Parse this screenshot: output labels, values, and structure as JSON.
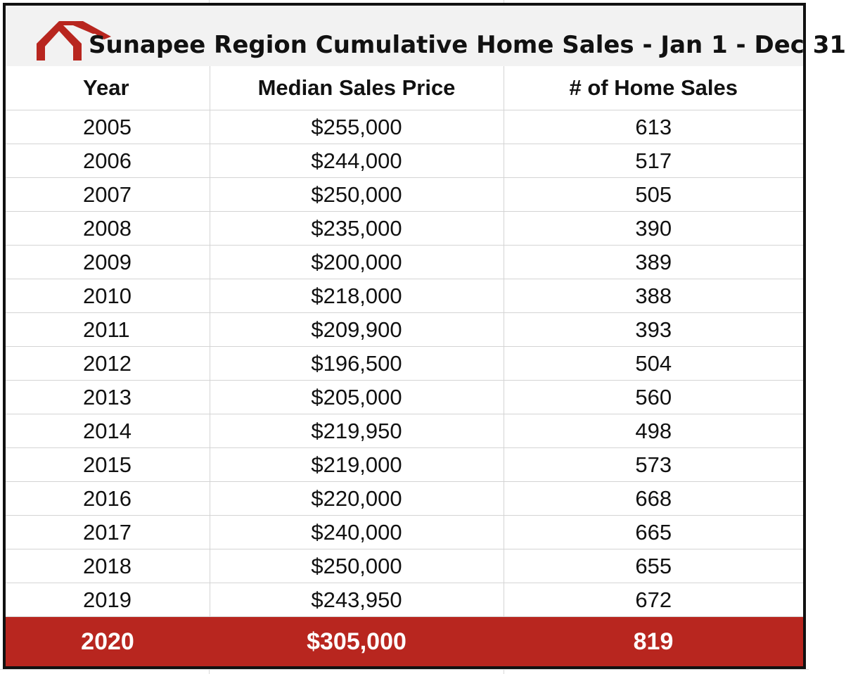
{
  "title": "Sunapee Region Cumulative Home Sales - Jan 1 - Dec 31",
  "colors": {
    "logo": "#b8261f",
    "highlight_row": "#b8261f",
    "frame": "#111111",
    "title_bg": "#f2f2f2"
  },
  "logo_icon": "house-roof-icon",
  "headers": {
    "year": "Year",
    "price": "Median Sales Price",
    "sales": "# of Home Sales"
  },
  "rows": [
    {
      "year": "2005",
      "price": "$255,000",
      "sales": "613"
    },
    {
      "year": "2006",
      "price": "$244,000",
      "sales": "517"
    },
    {
      "year": "2007",
      "price": "$250,000",
      "sales": "505"
    },
    {
      "year": "2008",
      "price": "$235,000",
      "sales": "390"
    },
    {
      "year": "2009",
      "price": "$200,000",
      "sales": "389"
    },
    {
      "year": "2010",
      "price": "$218,000",
      "sales": "388"
    },
    {
      "year": "2011",
      "price": "$209,900",
      "sales": "393"
    },
    {
      "year": "2012",
      "price": "$196,500",
      "sales": "504"
    },
    {
      "year": "2013",
      "price": "$205,000",
      "sales": "560"
    },
    {
      "year": "2014",
      "price": "$219,950",
      "sales": "498"
    },
    {
      "year": "2015",
      "price": "$219,000",
      "sales": "573"
    },
    {
      "year": "2016",
      "price": "$220,000",
      "sales": "668"
    },
    {
      "year": "2017",
      "price": "$240,000",
      "sales": "665"
    },
    {
      "year": "2018",
      "price": "$250,000",
      "sales": "655"
    },
    {
      "year": "2019",
      "price": "$243,950",
      "sales": "672"
    }
  ],
  "highlight": {
    "year": "2020",
    "price": "$305,000",
    "sales": "819"
  },
  "chart_data": {
    "type": "table",
    "title": "Sunapee Region Cumulative Home Sales - Jan 1 - Dec 31",
    "columns": [
      "Year",
      "Median Sales Price",
      "# of Home Sales"
    ],
    "x": [
      2005,
      2006,
      2007,
      2008,
      2009,
      2010,
      2011,
      2012,
      2013,
      2014,
      2015,
      2016,
      2017,
      2018,
      2019,
      2020
    ],
    "series": [
      {
        "name": "Median Sales Price",
        "values": [
          255000,
          244000,
          250000,
          235000,
          200000,
          218000,
          209900,
          196500,
          205000,
          219950,
          219000,
          220000,
          240000,
          250000,
          243950,
          305000
        ]
      },
      {
        "name": "# of Home Sales",
        "values": [
          613,
          517,
          505,
          390,
          389,
          388,
          393,
          504,
          560,
          498,
          573,
          668,
          665,
          655,
          672,
          819
        ]
      }
    ],
    "highlighted_row": "2020"
  }
}
